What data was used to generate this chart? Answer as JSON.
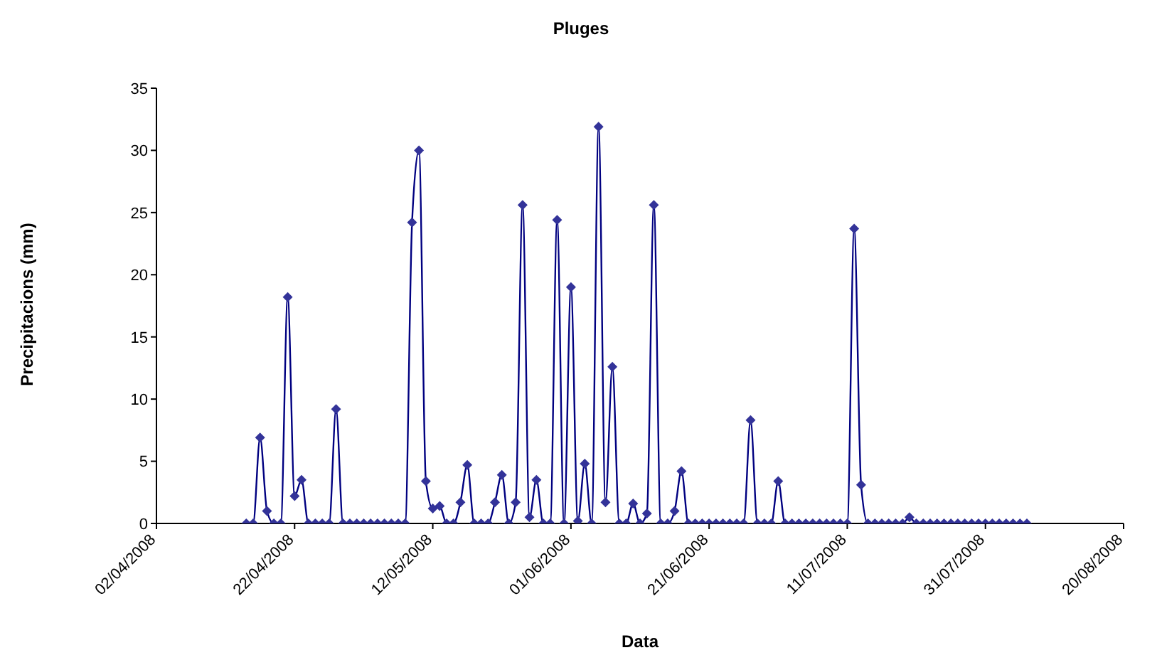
{
  "chart_data": {
    "type": "line",
    "title": "Pluges",
    "xlabel": "Data",
    "ylabel": "Precipitacions (mm)",
    "x": [
      "2008-04-15",
      "2008-04-16",
      "2008-04-17",
      "2008-04-18",
      "2008-04-19",
      "2008-04-20",
      "2008-04-21",
      "2008-04-22",
      "2008-04-23",
      "2008-04-24",
      "2008-04-25",
      "2008-04-26",
      "2008-04-27",
      "2008-04-28",
      "2008-04-29",
      "2008-04-30",
      "2008-05-01",
      "2008-05-02",
      "2008-05-03",
      "2008-05-04",
      "2008-05-05",
      "2008-05-06",
      "2008-05-07",
      "2008-05-08",
      "2008-05-09",
      "2008-05-10",
      "2008-05-11",
      "2008-05-12",
      "2008-05-13",
      "2008-05-14",
      "2008-05-15",
      "2008-05-16",
      "2008-05-17",
      "2008-05-18",
      "2008-05-19",
      "2008-05-20",
      "2008-05-21",
      "2008-05-22",
      "2008-05-23",
      "2008-05-24",
      "2008-05-25",
      "2008-05-26",
      "2008-05-27",
      "2008-05-28",
      "2008-05-29",
      "2008-05-30",
      "2008-05-31",
      "2008-06-01",
      "2008-06-02",
      "2008-06-03",
      "2008-06-04",
      "2008-06-05",
      "2008-06-06",
      "2008-06-07",
      "2008-06-08",
      "2008-06-09",
      "2008-06-10",
      "2008-06-11",
      "2008-06-12",
      "2008-06-13",
      "2008-06-14",
      "2008-06-15",
      "2008-06-16",
      "2008-06-17",
      "2008-06-18",
      "2008-06-19",
      "2008-06-20",
      "2008-06-21",
      "2008-06-22",
      "2008-06-23",
      "2008-06-24",
      "2008-06-25",
      "2008-06-26",
      "2008-06-27",
      "2008-06-28",
      "2008-06-29",
      "2008-06-30",
      "2008-07-01",
      "2008-07-02",
      "2008-07-03",
      "2008-07-04",
      "2008-07-05",
      "2008-07-06",
      "2008-07-07",
      "2008-07-08",
      "2008-07-09",
      "2008-07-10",
      "2008-07-11",
      "2008-07-12",
      "2008-07-13",
      "2008-07-14",
      "2008-07-15",
      "2008-07-16",
      "2008-07-17",
      "2008-07-18",
      "2008-07-19",
      "2008-07-20",
      "2008-07-21",
      "2008-07-22",
      "2008-07-23",
      "2008-07-24",
      "2008-07-25",
      "2008-07-26",
      "2008-07-27",
      "2008-07-28",
      "2008-07-29",
      "2008-07-30",
      "2008-07-31",
      "2008-08-01",
      "2008-08-02",
      "2008-08-03",
      "2008-08-04",
      "2008-08-05",
      "2008-08-06"
    ],
    "series": [
      {
        "color": "#333399",
        "values": [
          0,
          0,
          6.9,
          1.0,
          0,
          0,
          18.2,
          2.2,
          3.5,
          0,
          0,
          0,
          0,
          9.2,
          0,
          0,
          0,
          0,
          0,
          0,
          0,
          0,
          0,
          0,
          24.2,
          30.0,
          3.4,
          1.2,
          1.4,
          0,
          0,
          1.7,
          4.7,
          0,
          0,
          0,
          1.7,
          3.9,
          0,
          1.7,
          25.6,
          0.5,
          3.5,
          0,
          0,
          24.4,
          0,
          19.0,
          0.2,
          4.8,
          0,
          31.9,
          1.7,
          12.6,
          0,
          0,
          1.6,
          0,
          0.8,
          25.6,
          0,
          0,
          1.0,
          4.2,
          0,
          0,
          0,
          0,
          0,
          0,
          0,
          0,
          0,
          8.3,
          0,
          0,
          0,
          3.4,
          0,
          0,
          0,
          0,
          0,
          0,
          0,
          0,
          0,
          0,
          23.7,
          3.1,
          0,
          0,
          0,
          0,
          0,
          0,
          0.5,
          0,
          0,
          0,
          0,
          0,
          0,
          0,
          0,
          0,
          0,
          0,
          0,
          0,
          0,
          0,
          0,
          0
        ]
      }
    ],
    "xlim": [
      "2008-04-02",
      "2008-08-20"
    ],
    "xticks": [
      {
        "value": "2008-04-02",
        "label": "02/04/2008"
      },
      {
        "value": "2008-04-22",
        "label": "22/04/2008"
      },
      {
        "value": "2008-05-12",
        "label": "12/05/2008"
      },
      {
        "value": "2008-06-01",
        "label": "01/06/2008"
      },
      {
        "value": "2008-06-21",
        "label": "21/06/2008"
      },
      {
        "value": "2008-07-11",
        "label": "11/07/2008"
      },
      {
        "value": "2008-07-31",
        "label": "31/07/2008"
      },
      {
        "value": "2008-08-20",
        "label": "20/08/2008"
      }
    ],
    "ylim": [
      0,
      35
    ],
    "yticks": [
      0,
      5,
      10,
      15,
      20,
      25,
      30,
      35
    ],
    "grid": false,
    "legend": false,
    "marker": "diamond",
    "line_style": "solid"
  }
}
